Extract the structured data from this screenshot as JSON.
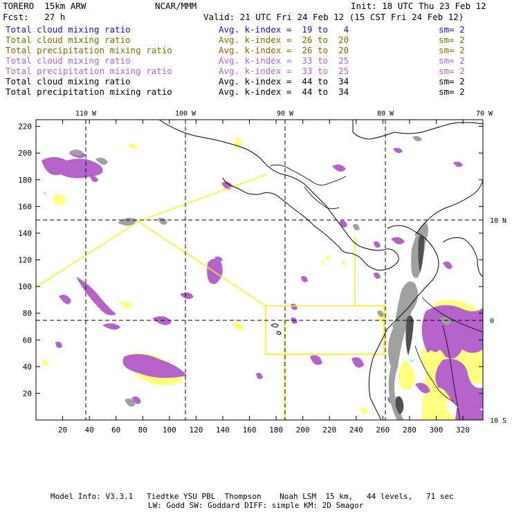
{
  "header": {
    "model": "TORERO  15km ARW",
    "org": "NCAR/MMM",
    "init": "Init: 18 UTC Thu 23 Feb 12",
    "fcst": "Fcst:   27 h",
    "valid": "Valid: 21 UTC Fri 24 Feb 12 (15 CST Fri 24 Feb 12)"
  },
  "legend": [
    {
      "field": "Total cloud mixing ratio",
      "range": "Avg. k-index =  19 to   4",
      "sm": "sm= 2",
      "color": "#1414c8"
    },
    {
      "field": "Total cloud mixing ratio",
      "range": "Avg. k-index =  26 to  20",
      "sm": "sm= 2",
      "color": "#7d6e00"
    },
    {
      "field": "Total precipitation mixing ratio",
      "range": "Avg. k-index =  26 to  20",
      "sm": "sm= 2",
      "color": "#7d6e00"
    },
    {
      "field": "Total cloud mixing ratio",
      "range": "Avg. k-index =  33 to  25",
      "sm": "sm= 2",
      "color": "#b464c8"
    },
    {
      "field": "Total precipitation mixing ratio",
      "range": "Avg. k-index =  33 to  25",
      "sm": "sm= 2",
      "color": "#b464c8"
    },
    {
      "field": "Total cloud mixing ratio",
      "range": "Avg. k-index =  44 to  34",
      "sm": "sm= 2",
      "color": "#000000"
    },
    {
      "field": "Total precipitation mixing ratio",
      "range": "Avg. k-index =  44 to  34",
      "sm": "sm= 2",
      "color": "#000000"
    }
  ],
  "map": {
    "top_lon_labels": [
      "110 W",
      "100 W",
      "90 W",
      "80 W",
      "70 W"
    ],
    "right_lat_labels": [
      "10 N",
      "0",
      "10 S"
    ],
    "x_ticks": [
      "20",
      "40",
      "60",
      "80",
      "100",
      "120",
      "140",
      "160",
      "180",
      "200",
      "220",
      "240",
      "260",
      "280",
      "300",
      "320"
    ],
    "y_ticks": [
      "220",
      "200",
      "180",
      "160",
      "140",
      "120",
      "100",
      "80",
      "60",
      "40",
      "20"
    ],
    "region_labels": [
      "C",
      "R"
    ],
    "colors": {
      "yellow": "#ffff80",
      "purple": "#b464c8",
      "gray": "#a0a0a0",
      "dark_gray": "#505050",
      "domain_outline": "#ffee20",
      "cyan": "#a0f0f0"
    }
  },
  "footer": {
    "line1": "Model Info: V3.3.1   Tiedtke YSU PBL  Thompson    Noah LSM  15 km,   44 levels,   71 sec",
    "line2": "LW: Godd SW: Goddard DIFF: simple KM: 2D Smagor"
  }
}
